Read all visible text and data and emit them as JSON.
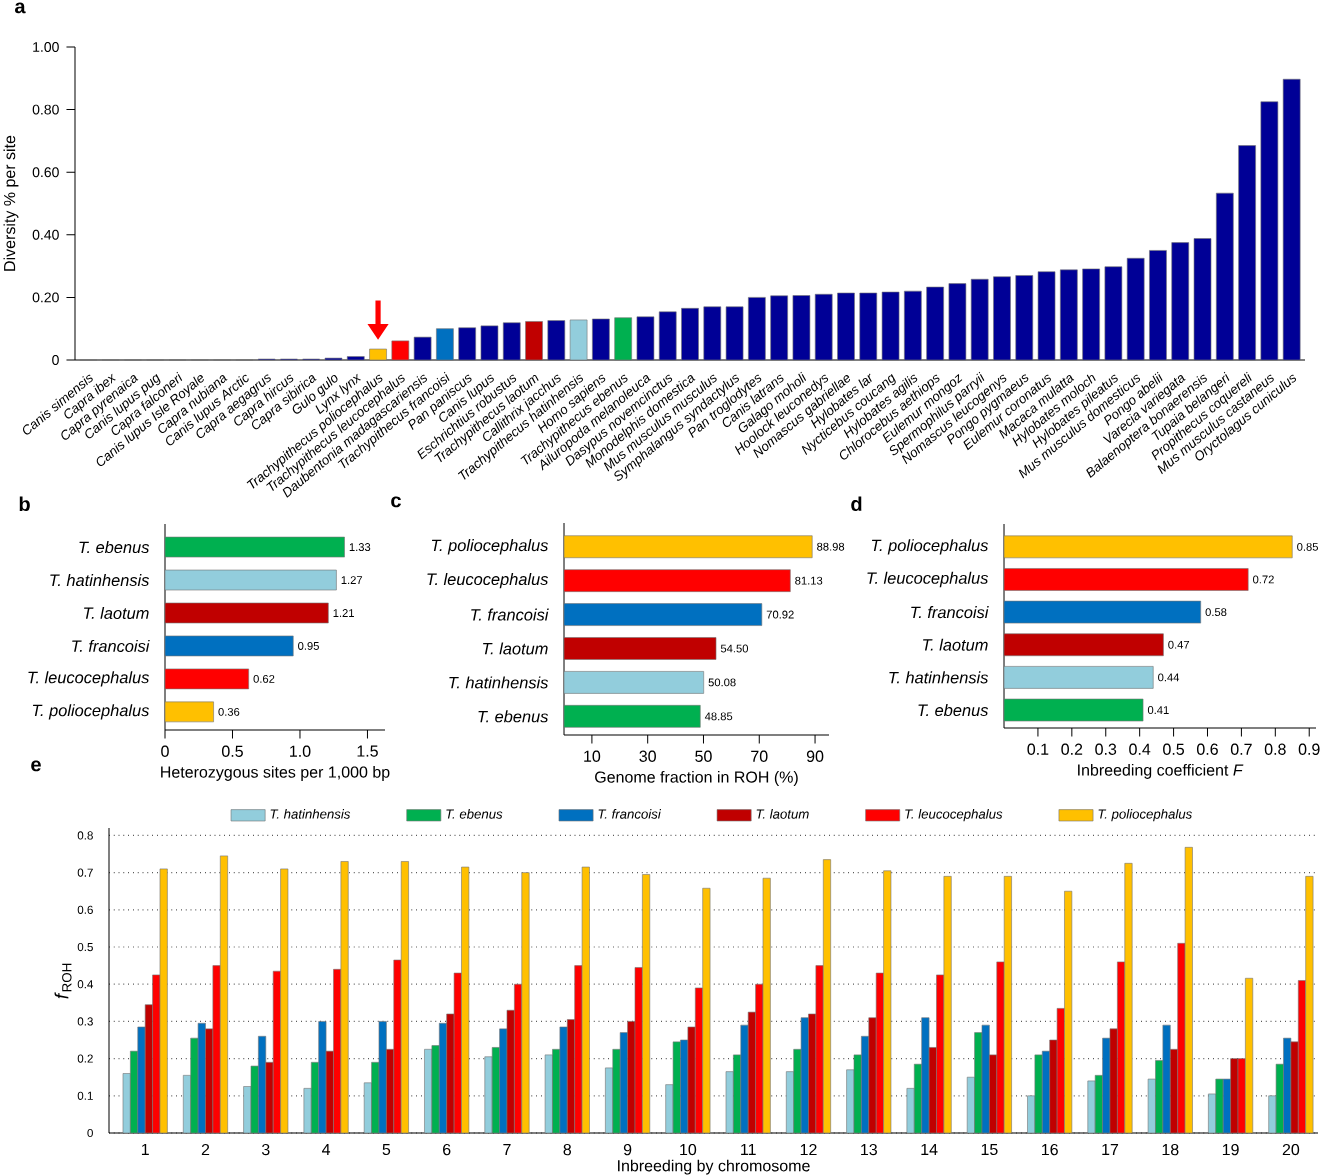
{
  "chart_data": [
    {
      "type": "bar",
      "title": "a",
      "ylabel": "Diversity % per site",
      "categories": [
        "Canis simensis",
        "Capra ibex",
        "Capra pyrenaica",
        "Canis lupus pug",
        "Capra falconeri",
        "Canis lupus Isle Royale",
        "Capra nubiana",
        "Canis lupus Arctic",
        "Capra aegagrus",
        "Capra hircus",
        "Capra sibirica",
        "Gulo gulo",
        "Lynx lynx",
        "Trachypithecus poliocephalus",
        "Trachypithecus leucocephalus",
        "Daubentonia madagascariensis",
        "Trachypithecus francoisi",
        "Pan paniscus",
        "Canis lupus",
        "Eschrichtius robustus",
        "Trachypithecus laotum",
        "Callithrix jacchus",
        "Trachypithecus hatinhensis",
        "Homo sapiens",
        "Trachypithecus ebenus",
        "Ailuropoda melanoleuca",
        "Dasypus novemcinctus",
        "Monodelphis domestica",
        "Mus musculus musculus",
        "Symphalangus syndactylus",
        "Pan troglodytes",
        "Canis latrans",
        "Galago moholi",
        "Hoolock leuconedys",
        "Nomascus gabriellae",
        "Hylobates lar",
        "Nycticebus coucang",
        "Hylobates agilis",
        "Chlorocebus aethiops",
        "Eulemur mongoz",
        "Spermophilus parryii",
        "Nomascus leucogenys",
        "Pongo pygmaeus",
        "Eulemur coronatus",
        "Macaca mulatta",
        "Hylobates moloch",
        "Hylobates pileatus",
        "Mus musculus domesticus",
        "Pongo abelii",
        "Varecia variegata",
        "Balaenoptera bonaerensis",
        "Tupaia belangeri",
        "Propithecus coquereli",
        "Mus musculus castaneus",
        "Oryctolagus cuniculus"
      ],
      "values": [
        0,
        0,
        0,
        0,
        0,
        0,
        0,
        0,
        0.003,
        0.003,
        0.003,
        0.006,
        0.011,
        0.035,
        0.061,
        0.073,
        0.1,
        0.103,
        0.109,
        0.119,
        0.123,
        0.126,
        0.128,
        0.131,
        0.135,
        0.138,
        0.154,
        0.165,
        0.17,
        0.17,
        0.2,
        0.205,
        0.206,
        0.21,
        0.214,
        0.214,
        0.217,
        0.22,
        0.233,
        0.244,
        0.258,
        0.266,
        0.27,
        0.282,
        0.288,
        0.291,
        0.298,
        0.325,
        0.35,
        0.375,
        0.388,
        0.533,
        0.685,
        0.825,
        0.897
      ],
      "colors": [
        "#000096",
        "#000096",
        "#000096",
        "#000096",
        "#000096",
        "#000096",
        "#000096",
        "#000096",
        "#000096",
        "#000096",
        "#000096",
        "#000096",
        "#000096",
        "#ffc000",
        "#ff0000",
        "#000096",
        "#0070c0",
        "#000096",
        "#000096",
        "#000096",
        "#c00000",
        "#000096",
        "#92cddc",
        "#000096",
        "#00b050",
        "#000096",
        "#000096",
        "#000096",
        "#000096",
        "#000096",
        "#000096",
        "#000096",
        "#000096",
        "#000096",
        "#000096",
        "#000096",
        "#000096",
        "#000096",
        "#000096",
        "#000096",
        "#000096",
        "#000096",
        "#000096",
        "#000096",
        "#000096",
        "#000096",
        "#000096",
        "#000096",
        "#000096",
        "#000096",
        "#000096",
        "#000096",
        "#000096",
        "#000096",
        "#000096"
      ],
      "ylim": [
        0,
        1.0
      ],
      "yticks": [
        0,
        {
          "value": 0.2,
          "label": "0.20"
        },
        {
          "value": 0.4,
          "label": "0.40"
        },
        {
          "value": 0.6,
          "label": "0.60"
        },
        {
          "value": 0.8,
          "label": "0.80"
        },
        {
          "value": 1.0,
          "label": "1.00"
        }
      ]
    },
    {
      "type": "bar",
      "title": "b",
      "orientation": "horizontal",
      "xlabel": "Heterozygous sites per 1,000 bp",
      "categories": [
        "T. ebenus",
        "T. hatinhensis",
        "T. laotum",
        "T. francoisi",
        "T. leucocephalus",
        "T. poliocephalus"
      ],
      "values": [
        1.33,
        1.27,
        1.21,
        0.95,
        0.62,
        0.36
      ],
      "colors": [
        "#00b050",
        "#92cddc",
        "#c00000",
        "#0070c0",
        "#ff0000",
        "#ffc000"
      ],
      "xlim": [
        0,
        1.63
      ],
      "xticks": [
        0,
        0.5,
        {
          "value": 1.0,
          "label": "1.0"
        },
        1.5
      ],
      "data_labels": true
    },
    {
      "type": "bar",
      "title": "c",
      "orientation": "horizontal",
      "xlabel": "Genome fraction in ROH (%)",
      "categories": [
        "T. poliocephalus",
        "T. leucocephalus",
        "T. francoisi",
        "T. laotum",
        "T. hatinhensis",
        "T. ebenus"
      ],
      "values": [
        88.98,
        81.13,
        70.92,
        54.5,
        50.08,
        48.85
      ],
      "value_labels": [
        "88.98",
        "81.13",
        "70.92",
        "54.50",
        "50.08",
        "48.85"
      ],
      "colors": [
        "#ffc000",
        "#ff0000",
        "#0070c0",
        "#c00000",
        "#92cddc",
        "#00b050"
      ],
      "xlim": [
        0,
        95
      ],
      "xticks": [
        10,
        30,
        50,
        70,
        90
      ]
    },
    {
      "type": "bar",
      "title": "d",
      "orientation": "horizontal",
      "xlabel": "Inbreeding coefficient *F*",
      "categories": [
        "T. poliocephalus",
        "T. leucocephalus",
        "T. francoisi",
        "T. laotum",
        "T. hatinhensis",
        "T. ebenus"
      ],
      "values": [
        0.85,
        0.72,
        0.58,
        0.47,
        0.44,
        0.41
      ],
      "colors": [
        "#ffc000",
        "#ff0000",
        "#0070c0",
        "#c00000",
        "#92cddc",
        "#00b050"
      ],
      "xlim": [
        0,
        0.92
      ],
      "xticks": [
        0.1,
        0.2,
        0.3,
        0.4,
        0.5,
        0.6,
        0.7,
        0.8,
        0.9
      ],
      "data_labels": true
    },
    {
      "type": "bar",
      "title": "e",
      "xlabel": "Inbreeding by chromosome",
      "ylabel": "*f*$_{ROH}$",
      "categories": [
        "1",
        "2",
        "3",
        "4",
        "5",
        "6",
        "7",
        "8",
        "9",
        "10",
        "11",
        "12",
        "13",
        "14",
        "15",
        "16",
        "17",
        "18",
        "19",
        "20"
      ],
      "series": [
        {
          "name": "T. hatinhensis",
          "color": "#92cddc",
          "values": [
            0.16,
            0.155,
            0.125,
            0.12,
            0.135,
            0.225,
            0.205,
            0.21,
            0.175,
            0.13,
            0.165,
            0.165,
            0.17,
            0.12,
            0.15,
            0.1,
            0.14,
            0.145,
            0.105,
            0.1
          ]
        },
        {
          "name": "T. ebenus",
          "color": "#00b050",
          "values": [
            0.22,
            0.255,
            0.18,
            0.19,
            0.19,
            0.235,
            0.23,
            0.225,
            0.225,
            0.245,
            0.21,
            0.225,
            0.21,
            0.185,
            0.27,
            0.21,
            0.155,
            0.195,
            0.145,
            0.185
          ]
        },
        {
          "name": "T. francoisi",
          "color": "#0070c0",
          "values": [
            0.285,
            0.295,
            0.26,
            0.3,
            0.3,
            0.295,
            0.28,
            0.285,
            0.27,
            0.25,
            0.29,
            0.31,
            0.26,
            0.31,
            0.29,
            0.22,
            0.255,
            0.29,
            0.145,
            0.255
          ]
        },
        {
          "name": "T. laotum",
          "color": "#c00000",
          "values": [
            0.345,
            0.28,
            0.19,
            0.22,
            0.225,
            0.32,
            0.33,
            0.305,
            0.3,
            0.285,
            0.325,
            0.32,
            0.31,
            0.23,
            0.21,
            0.25,
            0.28,
            0.225,
            0.2,
            0.245
          ]
        },
        {
          "name": "T. leucocephalus",
          "color": "#ff0000",
          "values": [
            0.425,
            0.45,
            0.435,
            0.44,
            0.465,
            0.43,
            0.4,
            0.45,
            0.445,
            0.39,
            0.4,
            0.45,
            0.43,
            0.425,
            0.46,
            0.335,
            0.46,
            0.51,
            0.2,
            0.41
          ]
        },
        {
          "name": "T. poliocephalus",
          "color": "#ffc000",
          "values": [
            0.71,
            0.745,
            0.71,
            0.73,
            0.73,
            0.715,
            0.7,
            0.715,
            0.695,
            0.658,
            0.685,
            0.735,
            0.705,
            0.69,
            0.69,
            0.65,
            0.725,
            0.768,
            0.416,
            0.69
          ]
        }
      ],
      "ylim": [
        0,
        0.82
      ],
      "yticks": [
        0,
        0.1,
        0.2,
        0.3,
        0.4,
        0.5,
        0.6,
        0.7,
        0.8
      ],
      "grid": "y",
      "legend": "top"
    }
  ]
}
